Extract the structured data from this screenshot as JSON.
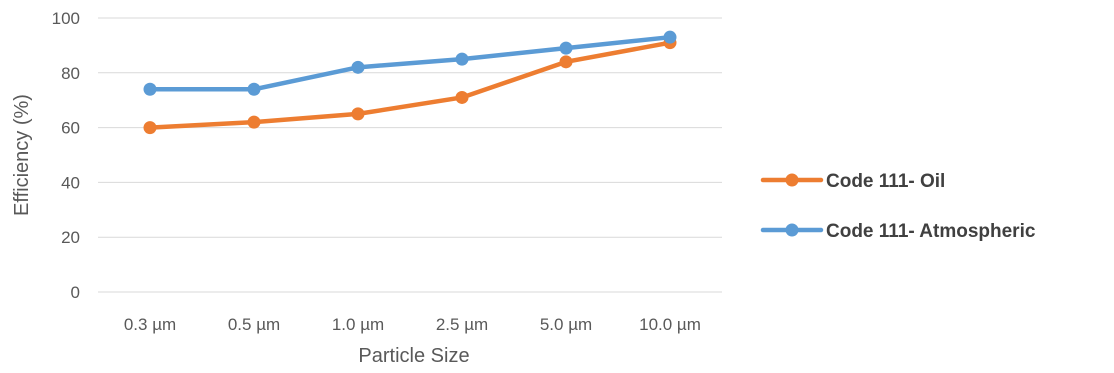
{
  "chart_data": {
    "type": "line",
    "title": "",
    "xlabel": "Particle Size",
    "ylabel": "Efficiency (%)",
    "categories": [
      "0.3 µm",
      "0.5 µm",
      "1.0 µm",
      "2.5 µm",
      "5.0 µm",
      "10.0 µm"
    ],
    "ylim": [
      0,
      100
    ],
    "yticks": [
      0,
      20,
      40,
      60,
      80,
      100
    ],
    "grid": true,
    "legend": "right",
    "series": [
      {
        "name": "Code 111- Oil",
        "color": "#ed7d31",
        "values": [
          60,
          62,
          65,
          71,
          84,
          91
        ]
      },
      {
        "name": "Code 111- Atmospheric",
        "color": "#5b9bd5",
        "values": [
          74,
          74,
          82,
          85,
          89,
          93
        ]
      }
    ]
  }
}
